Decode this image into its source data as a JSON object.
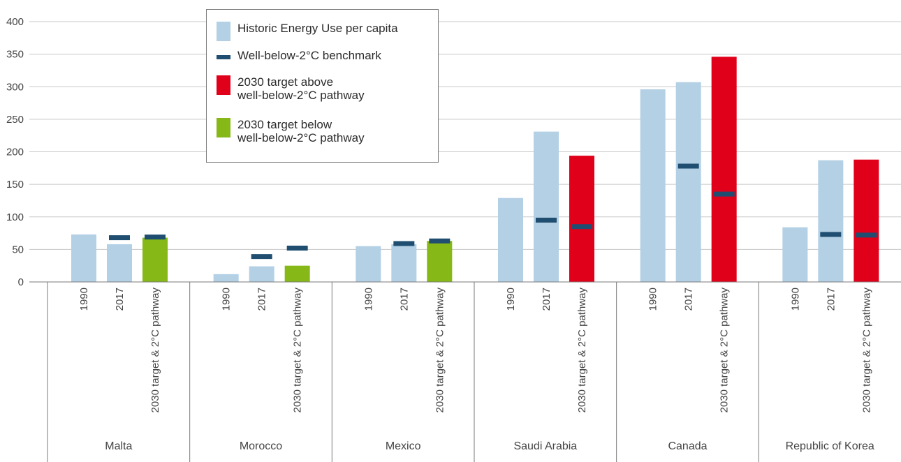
{
  "chart_data": {
    "type": "bar",
    "title": "",
    "xlabel": "",
    "ylabel": "",
    "ylim": [
      0,
      400
    ],
    "yticks": [
      "0",
      "50",
      "100",
      "150",
      "200",
      "250",
      "300",
      "350",
      "400"
    ],
    "grid": true,
    "legend_position": "top-left",
    "bar_labels": [
      "1990",
      "2017",
      "2030 target & 2°C pathway"
    ],
    "colors": {
      "historic": "#b3d0e5",
      "benchmark": "#1f4e70",
      "above": "#e1001a",
      "below": "#86b817",
      "grid": "#c8c8c8",
      "axis": "#7a7a7a",
      "text": "#444444"
    },
    "legend": [
      {
        "label": "Historic Energy Use per capita",
        "kind": "historic"
      },
      {
        "label": "Well-below-2°C benchmark",
        "kind": "benchmark"
      },
      {
        "label": "2030 target above\nwell-below-2°C pathway",
        "kind": "above"
      },
      {
        "label": "2030 target below\nwell-below-2°C pathway",
        "kind": "below"
      }
    ],
    "groups": [
      {
        "country": "Malta",
        "values_1990": 73,
        "values_2017": 58,
        "target_2030": 68,
        "target_status": "below",
        "benchmark_2017": 68,
        "benchmark_2030": 69
      },
      {
        "country": "Morocco",
        "values_1990": 12,
        "values_2017": 24,
        "target_2030": 25,
        "target_status": "below",
        "benchmark_2017": 39,
        "benchmark_2030": 52
      },
      {
        "country": "Mexico",
        "values_1990": 55,
        "values_2017": 58,
        "target_2030": 63,
        "target_status": "below",
        "benchmark_2017": 59,
        "benchmark_2030": 63
      },
      {
        "country": "Saudi Arabia",
        "values_1990": 129,
        "values_2017": 231,
        "target_2030": 194,
        "target_status": "above",
        "benchmark_2017": 95,
        "benchmark_2030": 85
      },
      {
        "country": "Canada",
        "values_1990": 296,
        "values_2017": 307,
        "target_2030": 346,
        "target_status": "above",
        "benchmark_2017": 178,
        "benchmark_2030": 135
      },
      {
        "country": "Republic of Korea",
        "values_1990": 84,
        "values_2017": 187,
        "target_2030": 188,
        "target_status": "above",
        "benchmark_2017": 73,
        "benchmark_2030": 72
      }
    ]
  }
}
